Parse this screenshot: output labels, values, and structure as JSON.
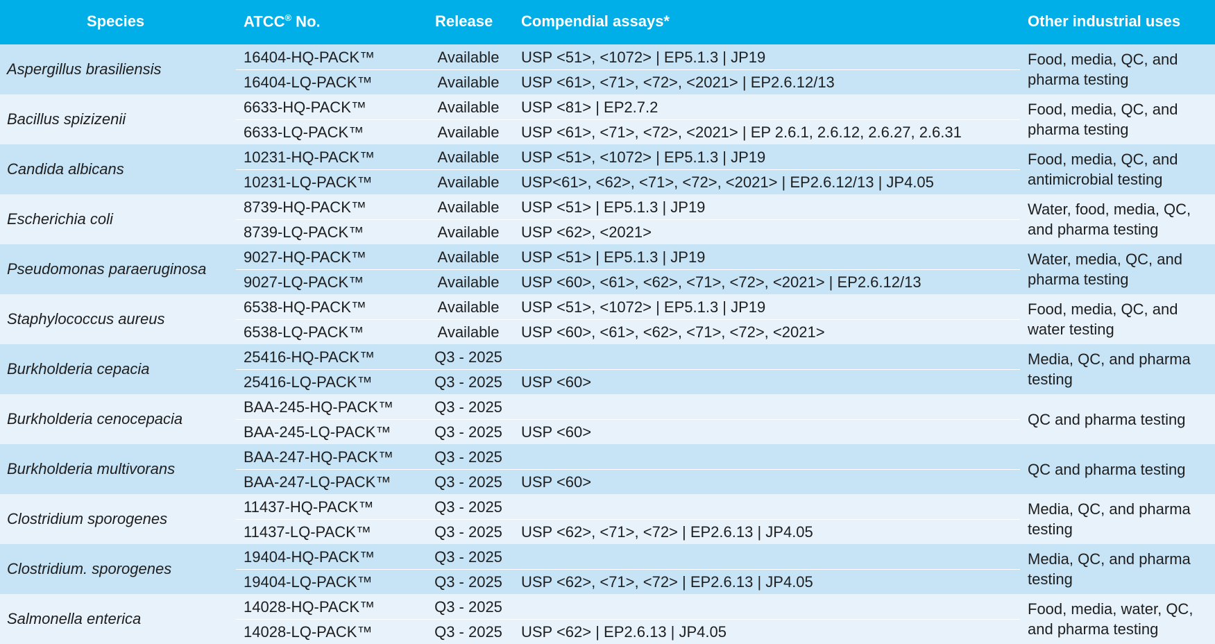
{
  "colors": {
    "header": "#00aee8",
    "row_dark": "#c7e3f6",
    "row_light": "#e7f2fb"
  },
  "header": {
    "species": "Species",
    "atcc": "ATCC",
    "atcc_sup": "®",
    "atcc_suffix": " No.",
    "release": "Release",
    "compendial": "Compendial assays*",
    "other": "Other industrial uses"
  },
  "groups": [
    {
      "species": "Aspergillus brasiliensis",
      "other": "Food, media, QC, and pharma testing",
      "rows": [
        {
          "atcc": "16404-HQ-PACK™",
          "release": "Available",
          "compendial": "USP <51>, <1072> | EP5.1.3 | JP19"
        },
        {
          "atcc": "16404-LQ-PACK™",
          "release": "Available",
          "compendial": "USP <61>, <71>, <72>, <2021> | EP2.6.12/13"
        }
      ]
    },
    {
      "species": "Bacillus spizizenii",
      "other": "Food, media, QC, and pharma testing",
      "rows": [
        {
          "atcc": "6633-HQ-PACK™",
          "release": "Available",
          "compendial": "USP <81> | EP2.7.2"
        },
        {
          "atcc": "6633-LQ-PACK™",
          "release": "Available",
          "compendial": "USP <61>, <71>, <72>, <2021> | EP 2.6.1, 2.6.12, 2.6.27, 2.6.31"
        }
      ]
    },
    {
      "species": "Candida albicans",
      "other": "Food, media, QC, and antimicrobial testing",
      "rows": [
        {
          "atcc": "10231-HQ-PACK™",
          "release": "Available",
          "compendial": "USP <51>, <1072> | EP5.1.3 | JP19"
        },
        {
          "atcc": "10231-LQ-PACK™",
          "release": "Available",
          "compendial": "USP<61>, <62>, <71>, <72>, <2021> | EP2.6.12/13 | JP4.05"
        }
      ]
    },
    {
      "species": "Escherichia coli",
      "other": "Water, food, media, QC, and pharma testing",
      "rows": [
        {
          "atcc": "8739-HQ-PACK™",
          "release": "Available",
          "compendial": "USP <51> | EP5.1.3 | JP19"
        },
        {
          "atcc": "8739-LQ-PACK™",
          "release": "Available",
          "compendial": "USP <62>, <2021>"
        }
      ]
    },
    {
      "species": "Pseudomonas paraeruginosa",
      "other": "Water, media, QC, and pharma testing",
      "rows": [
        {
          "atcc": "9027-HQ-PACK™",
          "release": "Available",
          "compendial": "USP <51> | EP5.1.3 | JP19"
        },
        {
          "atcc": "9027-LQ-PACK™",
          "release": "Available",
          "compendial": "USP <60>, <61>, <62>, <71>, <72>, <2021> | EP2.6.12/13"
        }
      ]
    },
    {
      "species": "Staphylococcus aureus",
      "other": "Food, media, QC, and water testing",
      "rows": [
        {
          "atcc": "6538-HQ-PACK™",
          "release": "Available",
          "compendial": "USP <51>, <1072> | EP5.1.3 | JP19"
        },
        {
          "atcc": "6538-LQ-PACK™",
          "release": "Available",
          "compendial": "USP <60>, <61>, <62>, <71>, <72>, <2021>"
        }
      ]
    },
    {
      "species": "Burkholderia cepacia",
      "other": "Media, QC, and pharma testing",
      "rows": [
        {
          "atcc": "25416-HQ-PACK™",
          "release": "Q3 - 2025",
          "compendial": ""
        },
        {
          "atcc": "25416-LQ-PACK™",
          "release": "Q3 - 2025",
          "compendial": "USP <60>"
        }
      ]
    },
    {
      "species": "Burkholderia cenocepacia",
      "other": "QC and pharma testing",
      "rows": [
        {
          "atcc": "BAA-245-HQ-PACK™",
          "release": "Q3 - 2025",
          "compendial": ""
        },
        {
          "atcc": "BAA-245-LQ-PACK™",
          "release": "Q3 - 2025",
          "compendial": "USP <60>"
        }
      ]
    },
    {
      "species": "Burkholderia multivorans",
      "other": "QC and pharma testing",
      "rows": [
        {
          "atcc": "BAA-247-HQ-PACK™",
          "release": "Q3 - 2025",
          "compendial": ""
        },
        {
          "atcc": "BAA-247-LQ-PACK™",
          "release": "Q3 - 2025",
          "compendial": "USP <60>"
        }
      ]
    },
    {
      "species": "Clostridium sporogenes",
      "other": "Media, QC, and pharma testing",
      "rows": [
        {
          "atcc": "11437-HQ-PACK™",
          "release": "Q3 - 2025",
          "compendial": ""
        },
        {
          "atcc": "11437-LQ-PACK™",
          "release": "Q3 - 2025",
          "compendial": "USP <62>, <71>, <72> | EP2.6.13 | JP4.05"
        }
      ]
    },
    {
      "species": "Clostridium. sporogenes",
      "other": "Media, QC, and pharma testing",
      "rows": [
        {
          "atcc": "19404-HQ-PACK™",
          "release": "Q3 - 2025",
          "compendial": ""
        },
        {
          "atcc": "19404-LQ-PACK™",
          "release": "Q3 - 2025",
          "compendial": "USP <62>, <71>, <72> | EP2.6.13 | JP4.05"
        }
      ]
    },
    {
      "species": "Salmonella enterica",
      "other": "Food, media, water, QC, and pharma testing",
      "rows": [
        {
          "atcc": "14028-HQ-PACK™",
          "release": "Q3 - 2025",
          "compendial": ""
        },
        {
          "atcc": "14028-LQ-PACK™",
          "release": "Q3 - 2025",
          "compendial": "USP <62> | EP2.6.13 | JP4.05"
        }
      ]
    }
  ]
}
